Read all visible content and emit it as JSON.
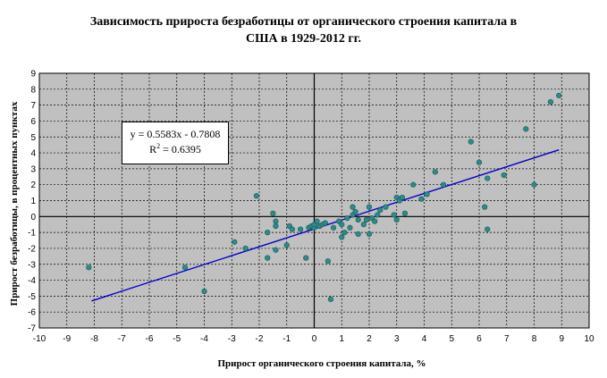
{
  "title_line1": "Зависимость прироста безработицы от органического строения капитала в",
  "title_line2": "США в 1929-2012 гг.",
  "chart_data": {
    "type": "scatter",
    "title": "Зависимость прироста безработицы от органического строения капитала в США в 1929-2012 гг.",
    "xlabel": "Прирост органического строения капитала, %",
    "ylabel": "Прирост безработицы,  в процентных пунктах",
    "xlim": [
      -10,
      10
    ],
    "ylim": [
      -7,
      9
    ],
    "grid": true,
    "plot_background": "#c0c0c0",
    "point_color": "#2e8b8b",
    "trend_color": "#0000cc",
    "trendline": {
      "slope": 0.5583,
      "intercept": -0.7808,
      "x_range": [
        -8.1,
        8.9
      ],
      "equation": "y = 0.5583x - 0.7808",
      "r2_label": "R",
      "r2_sup": "2",
      "r2_value": " = 0.6395"
    },
    "xticks": [
      -10,
      -9,
      -8,
      -7,
      -6,
      -5,
      -4,
      -3,
      -2,
      -1,
      0,
      1,
      2,
      3,
      4,
      5,
      6,
      7,
      8,
      9,
      10
    ],
    "yticks": [
      -7,
      -6,
      -5,
      -4,
      -3,
      -2,
      -1,
      0,
      1,
      2,
      3,
      4,
      5,
      6,
      7,
      8,
      9
    ],
    "points": [
      [
        -8.2,
        -3.2
      ],
      [
        -4.7,
        -3.2
      ],
      [
        -4.0,
        -4.7
      ],
      [
        -2.9,
        -1.6
      ],
      [
        -2.5,
        -2.0
      ],
      [
        -2.1,
        1.3
      ],
      [
        -1.7,
        -2.6
      ],
      [
        -1.7,
        -1.0
      ],
      [
        -1.5,
        0.2
      ],
      [
        -1.4,
        -0.3
      ],
      [
        -1.4,
        -0.6
      ],
      [
        -1.4,
        -2.1
      ],
      [
        -1.0,
        -1.8
      ],
      [
        -0.9,
        -0.6
      ],
      [
        -0.8,
        -0.8
      ],
      [
        -0.5,
        -0.8
      ],
      [
        -0.3,
        -2.6
      ],
      [
        -0.2,
        -0.7
      ],
      [
        -0.1,
        -0.6
      ],
      [
        0.0,
        -0.7
      ],
      [
        0.0,
        -0.5
      ],
      [
        0.1,
        -0.3
      ],
      [
        0.2,
        -0.6
      ],
      [
        0.3,
        -0.5
      ],
      [
        0.4,
        -0.4
      ],
      [
        0.5,
        -2.8
      ],
      [
        0.6,
        -5.2
      ],
      [
        0.7,
        -0.7
      ],
      [
        0.9,
        -0.3
      ],
      [
        1.0,
        -0.5
      ],
      [
        1.0,
        -1.3
      ],
      [
        1.1,
        -1.0
      ],
      [
        1.2,
        -0.1
      ],
      [
        1.3,
        -0.7
      ],
      [
        1.4,
        0.1
      ],
      [
        1.4,
        0.6
      ],
      [
        1.5,
        0.3
      ],
      [
        1.6,
        -1.1
      ],
      [
        1.6,
        -0.2
      ],
      [
        1.8,
        -0.5
      ],
      [
        1.9,
        -0.2
      ],
      [
        2.0,
        0.6
      ],
      [
        2.0,
        -1.1
      ],
      [
        2.1,
        -0.1
      ],
      [
        2.2,
        -0.3
      ],
      [
        2.3,
        0.1
      ],
      [
        2.4,
        0.4
      ],
      [
        2.6,
        0.6
      ],
      [
        2.9,
        0.1
      ],
      [
        3.0,
        -0.2
      ],
      [
        3.0,
        1.2
      ],
      [
        3.1,
        1.0
      ],
      [
        3.2,
        1.2
      ],
      [
        3.3,
        0.2
      ],
      [
        3.6,
        2.0
      ],
      [
        3.9,
        1.1
      ],
      [
        4.1,
        1.4
      ],
      [
        4.4,
        2.8
      ],
      [
        4.7,
        2.0
      ],
      [
        5.7,
        4.7
      ],
      [
        6.0,
        3.4
      ],
      [
        6.2,
        0.6
      ],
      [
        6.3,
        2.4
      ],
      [
        6.3,
        -0.8
      ],
      [
        6.9,
        2.6
      ],
      [
        7.7,
        5.5
      ],
      [
        8.0,
        2.0
      ],
      [
        8.6,
        7.2
      ],
      [
        8.9,
        7.6
      ]
    ]
  }
}
